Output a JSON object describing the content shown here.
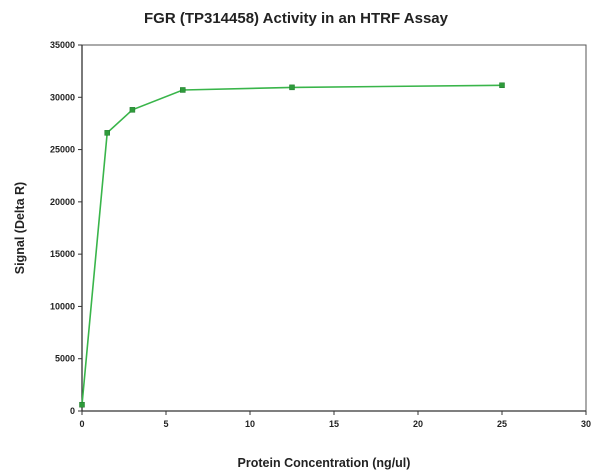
{
  "chart_data": {
    "type": "line",
    "title": "FGR (TP314458) Activity in an HTRF Assay",
    "xlabel": "Protein Concentration (ng/ul)",
    "ylabel": "Signal (Delta R)",
    "xlim": [
      0,
      30
    ],
    "ylim": [
      0,
      35000
    ],
    "x_ticks": [
      "0",
      "5",
      "10",
      "15",
      "20",
      "25",
      "30"
    ],
    "y_ticks": [
      "0",
      "5000",
      "10000",
      "15000",
      "20000",
      "25000",
      "30000",
      "35000"
    ],
    "x_tick_values": [
      0,
      5,
      10,
      15,
      20,
      25,
      30
    ],
    "y_tick_values": [
      0,
      5000,
      10000,
      15000,
      20000,
      25000,
      30000,
      35000
    ],
    "grid": false,
    "legend": "none",
    "series": [
      {
        "color": "#39b54a",
        "marker_color": "#2e9b3b",
        "marker": "square",
        "points": [
          {
            "x": 0,
            "y": 600
          },
          {
            "x": 1.5,
            "y": 26600
          },
          {
            "x": 3,
            "y": 28800
          },
          {
            "x": 6,
            "y": 30700
          },
          {
            "x": 12.5,
            "y": 30950
          },
          {
            "x": 25,
            "y": 31150
          }
        ]
      }
    ]
  }
}
